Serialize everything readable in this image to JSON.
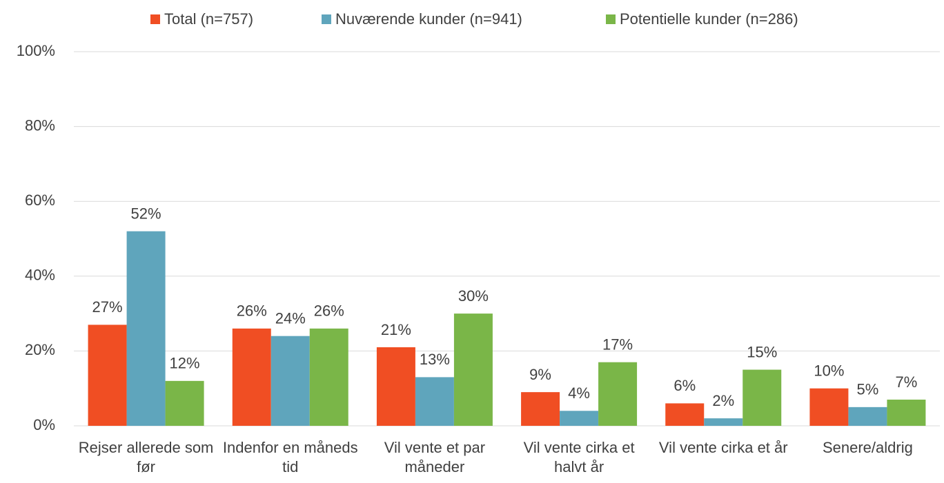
{
  "chart_data": {
    "type": "bar",
    "categories": [
      "Rejser allerede som før",
      "Indenfor en måneds tid",
      "Vil vente et par måneder",
      "Vil vente cirka et halvt år",
      "Vil vente cirka et år",
      "Senere/aldrig"
    ],
    "series": [
      {
        "name": "Total (n=757)",
        "color": "#f04e23",
        "values": [
          27,
          26,
          21,
          9,
          6,
          10
        ],
        "value_labels": [
          "27%",
          "26%",
          "21%",
          "9%",
          "6%",
          "10%"
        ]
      },
      {
        "name": "Nuværende kunder (n=941)",
        "color": "#5fa5bc",
        "values": [
          52,
          24,
          13,
          4,
          2,
          5
        ],
        "value_labels": [
          "52%",
          "24%",
          "13%",
          "4%",
          "2%",
          "5%"
        ]
      },
      {
        "name": "Potentielle kunder (n=286)",
        "color": "#7ab648",
        "values": [
          12,
          26,
          30,
          17,
          15,
          7
        ],
        "value_labels": [
          "12%",
          "26%",
          "30%",
          "17%",
          "15%",
          "7%"
        ]
      }
    ],
    "ylim": [
      0,
      100
    ],
    "yticks": [
      {
        "value": 0,
        "label": "0%"
      },
      {
        "value": 20,
        "label": "20%"
      },
      {
        "value": 40,
        "label": "40%"
      },
      {
        "value": 60,
        "label": "60%"
      },
      {
        "value": 80,
        "label": "80%"
      },
      {
        "value": 100,
        "label": "100%"
      }
    ],
    "grid": true,
    "legend": "top"
  }
}
